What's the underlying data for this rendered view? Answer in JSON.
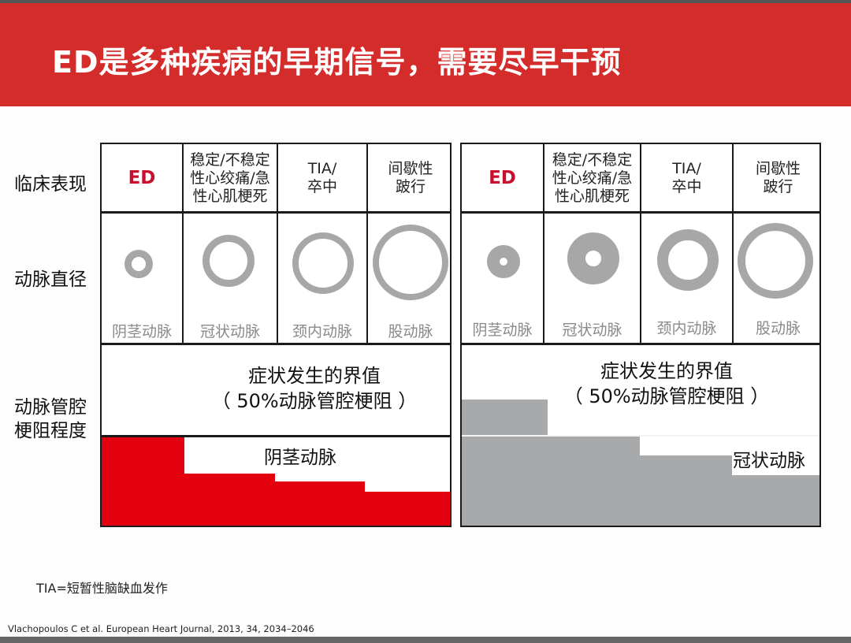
{
  "title": "ED是多种疾病的早期信号，需要尽早干预",
  "row_labels": {
    "clinical": "临床表现",
    "diameter": "动脉直径",
    "obstruction_line1": "动脉管腔",
    "obstruction_line2": "梗阻程度"
  },
  "headers": {
    "ed": "ED",
    "cad_line1": "稳定/不稳定",
    "cad_line2": "性心绞痛/急",
    "cad_line3": "性心肌梗死",
    "tia_line1": "TIA/",
    "tia_line2": "卒中",
    "pad_line1": "间歇性",
    "pad_line2": "跛行"
  },
  "arteries": {
    "penile": "阴茎动脉",
    "coronary": "冠状动脉",
    "carotid": "颈内动脉",
    "femoral": "股动脉"
  },
  "threshold": {
    "line1": "症状发生的界值",
    "line2": "（ 50%动脉管腔梗阻 ）"
  },
  "left_panel_step_label": "阴茎动脉",
  "right_panel_step_label": "冠状动脉",
  "colors": {
    "banner": "#d42b2b",
    "left_fill": "#e3000f",
    "right_fill": "#a8a9ab",
    "ring": "#a7a7a7",
    "ed_text": "#c8102e"
  },
  "footnote": "TIA=短暂性脑缺血发作",
  "citation": "Vlachopoulos C et al. European Heart Journal, 2013, 34, 2034–2046"
}
